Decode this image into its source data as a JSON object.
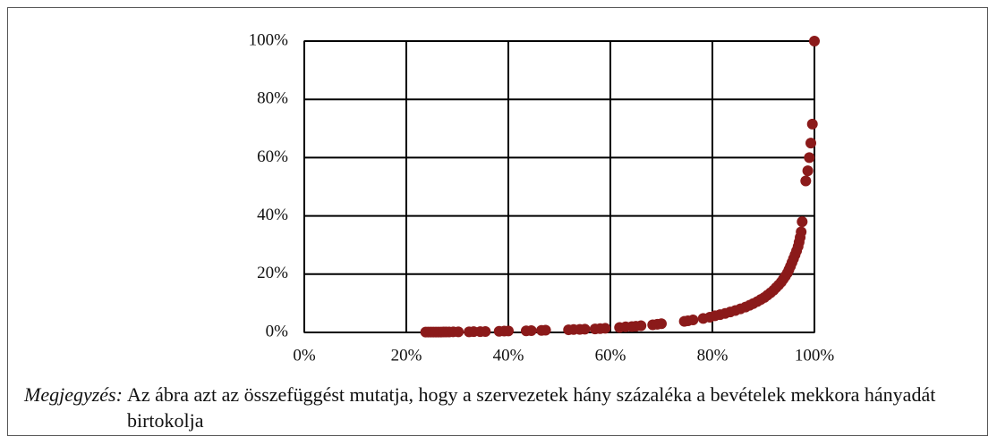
{
  "chart_data": {
    "type": "scatter",
    "color": "#8b1a1a",
    "grid": true,
    "xlim": [
      0,
      100
    ],
    "ylim": [
      0,
      100
    ],
    "xticks": [
      {
        "value": 0,
        "label": "0%"
      },
      {
        "value": 20,
        "label": "20%"
      },
      {
        "value": 40,
        "label": "40%"
      },
      {
        "value": 60,
        "label": "60%"
      },
      {
        "value": 80,
        "label": "80%"
      },
      {
        "value": 100,
        "label": "100%"
      }
    ],
    "yticks": [
      {
        "value": 0,
        "label": "0%"
      },
      {
        "value": 20,
        "label": "20%"
      },
      {
        "value": 40,
        "label": "40%"
      },
      {
        "value": 60,
        "label": "60%"
      },
      {
        "value": 80,
        "label": "80%"
      },
      {
        "value": 100,
        "label": "100%"
      }
    ],
    "x": [
      23.8,
      24.3,
      24.8,
      25.3,
      25.8,
      26.3,
      26.8,
      27.3,
      27.8,
      28.4,
      29.2,
      30.2,
      32.3,
      33.2,
      34.5,
      35.5,
      38.2,
      39.2,
      40.0,
      43.5,
      44.5,
      46.5,
      47.3,
      51.8,
      52.8,
      54.0,
      55.0,
      57.0,
      58.0,
      59.0,
      61.8,
      63.0,
      64.2,
      65.0,
      66.0,
      68.3,
      69.2,
      70.0,
      74.5,
      75.2,
      76.2,
      78.2,
      79.5,
      80.5,
      81.5,
      82.5,
      83.5,
      84.5,
      85.5,
      86.5,
      87.3,
      88.0,
      88.8,
      89.5,
      90.2,
      90.8,
      91.4,
      92.0,
      92.5,
      93.0,
      93.5,
      93.9,
      94.3,
      94.7,
      95.0,
      95.3,
      95.6,
      95.9,
      96.2,
      96.5,
      96.8,
      97.0,
      97.2,
      97.4,
      97.6,
      98.3,
      98.7,
      99.0,
      99.3,
      99.6,
      100
    ],
    "values": [
      0.1,
      0.1,
      0.1,
      0.1,
      0.1,
      0.1,
      0.1,
      0.15,
      0.15,
      0.15,
      0.2,
      0.2,
      0.2,
      0.25,
      0.25,
      0.3,
      0.4,
      0.45,
      0.5,
      0.55,
      0.6,
      0.7,
      0.75,
      0.9,
      1.0,
      1.05,
      1.1,
      1.2,
      1.3,
      1.4,
      1.7,
      1.9,
      2.0,
      2.1,
      2.3,
      2.6,
      2.8,
      3.0,
      3.8,
      4.0,
      4.3,
      4.8,
      5.2,
      5.7,
      6.1,
      6.5,
      7.0,
      7.5,
      8.1,
      8.7,
      9.3,
      9.9,
      10.6,
      11.3,
      12.0,
      12.8,
      13.6,
      14.5,
      15.4,
      16.3,
      17.3,
      18.3,
      19.3,
      20.4,
      21.5,
      22.7,
      24.0,
      25.3,
      26.6,
      28.0,
      29.5,
      31.0,
      32.6,
      34.5,
      38.0,
      52,
      55.5,
      60,
      65,
      71.5,
      100
    ],
    "note_label": "Megjegyzés:",
    "note": "Az ábra azt az összefüggést mutatja, hogy a szervezetek hány százaléka a bevételek mekkora hányadát birtokolja"
  }
}
